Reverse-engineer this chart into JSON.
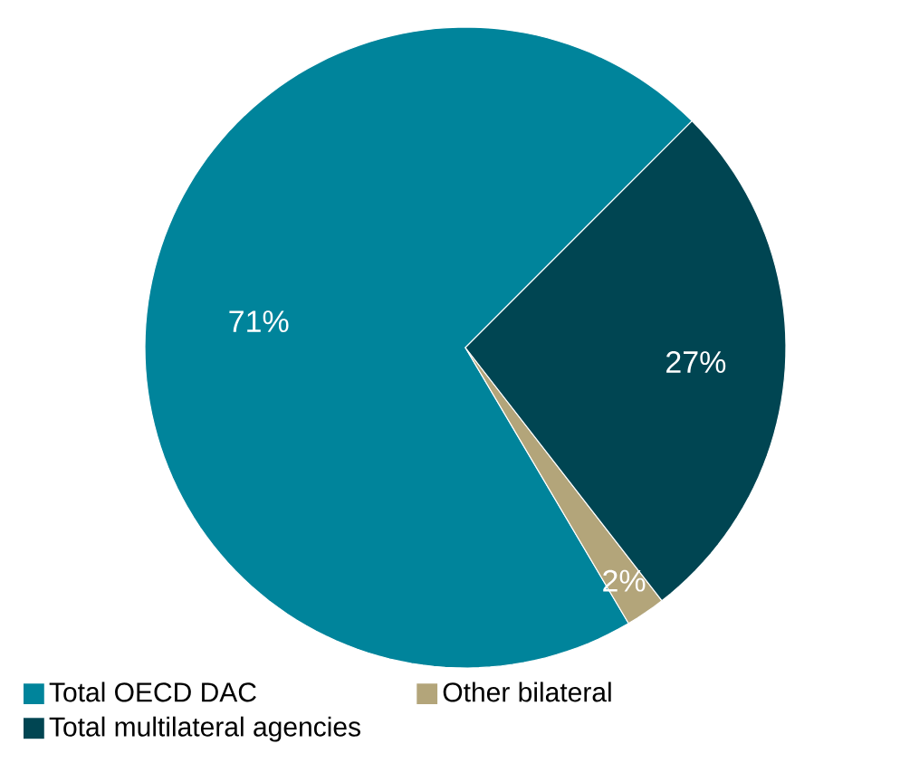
{
  "chart_data": {
    "type": "pie",
    "categories": [
      "Total OECD DAC",
      "Other bilateral",
      "Total multilateral agencies"
    ],
    "values": [
      71,
      2,
      27
    ],
    "colors": [
      "#00849b",
      "#b3a57a",
      "#004552"
    ],
    "value_labels": [
      "71%",
      "2%",
      "27%"
    ],
    "legend": "bottom"
  }
}
